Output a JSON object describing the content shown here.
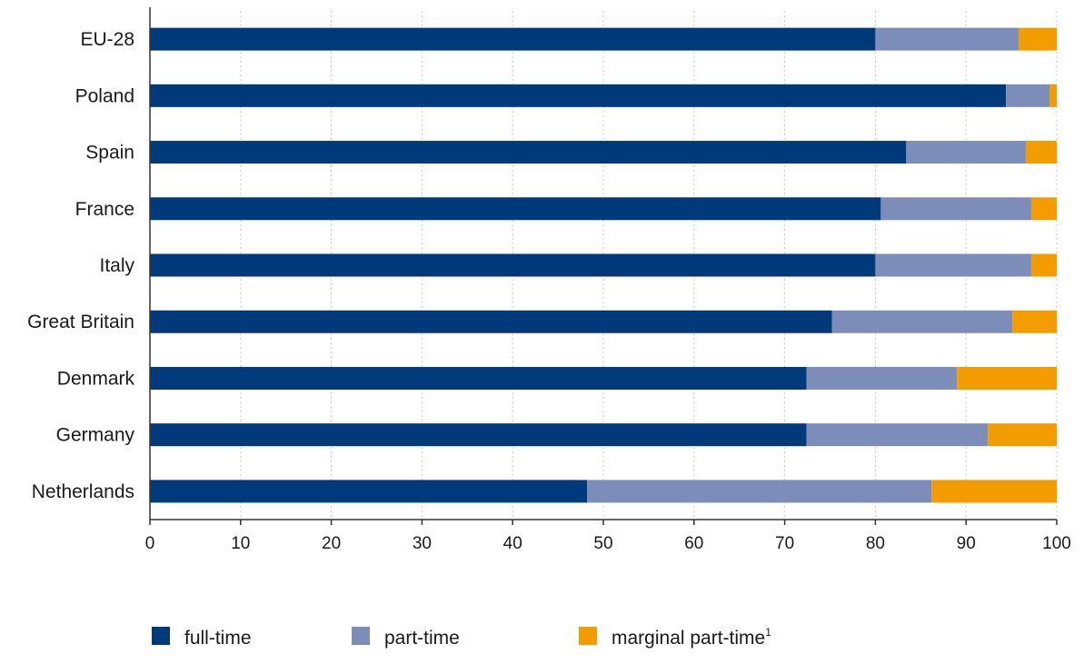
{
  "chart_data": {
    "type": "bar",
    "orientation": "horizontal",
    "stacked": true,
    "title": "",
    "xlabel": "",
    "ylabel": "",
    "xlim": [
      0,
      100
    ],
    "x_ticks": [
      0,
      10,
      20,
      30,
      40,
      50,
      60,
      70,
      80,
      90,
      100
    ],
    "grid": "vertical-dotted",
    "legend_position": "bottom",
    "categories": [
      "EU-28",
      "Poland",
      "Spain",
      "France",
      "Italy",
      "Great Britain",
      "Denmark",
      "Germany",
      "Netherlands"
    ],
    "series": [
      {
        "name": "full-time",
        "color": "#003a7a",
        "values": [
          80.0,
          94.4,
          83.4,
          80.6,
          80.0,
          75.2,
          72.4,
          72.4,
          48.2
        ]
      },
      {
        "name": "part-time",
        "color": "#7b8db8",
        "values": [
          15.8,
          4.8,
          13.2,
          16.6,
          17.2,
          19.9,
          16.6,
          20.0,
          38.0
        ]
      },
      {
        "name": "marginal part-time",
        "name_sup": "1",
        "color": "#f39c00",
        "values": [
          4.2,
          0.8,
          3.4,
          2.8,
          2.8,
          4.9,
          11.0,
          7.6,
          13.8
        ]
      }
    ]
  }
}
